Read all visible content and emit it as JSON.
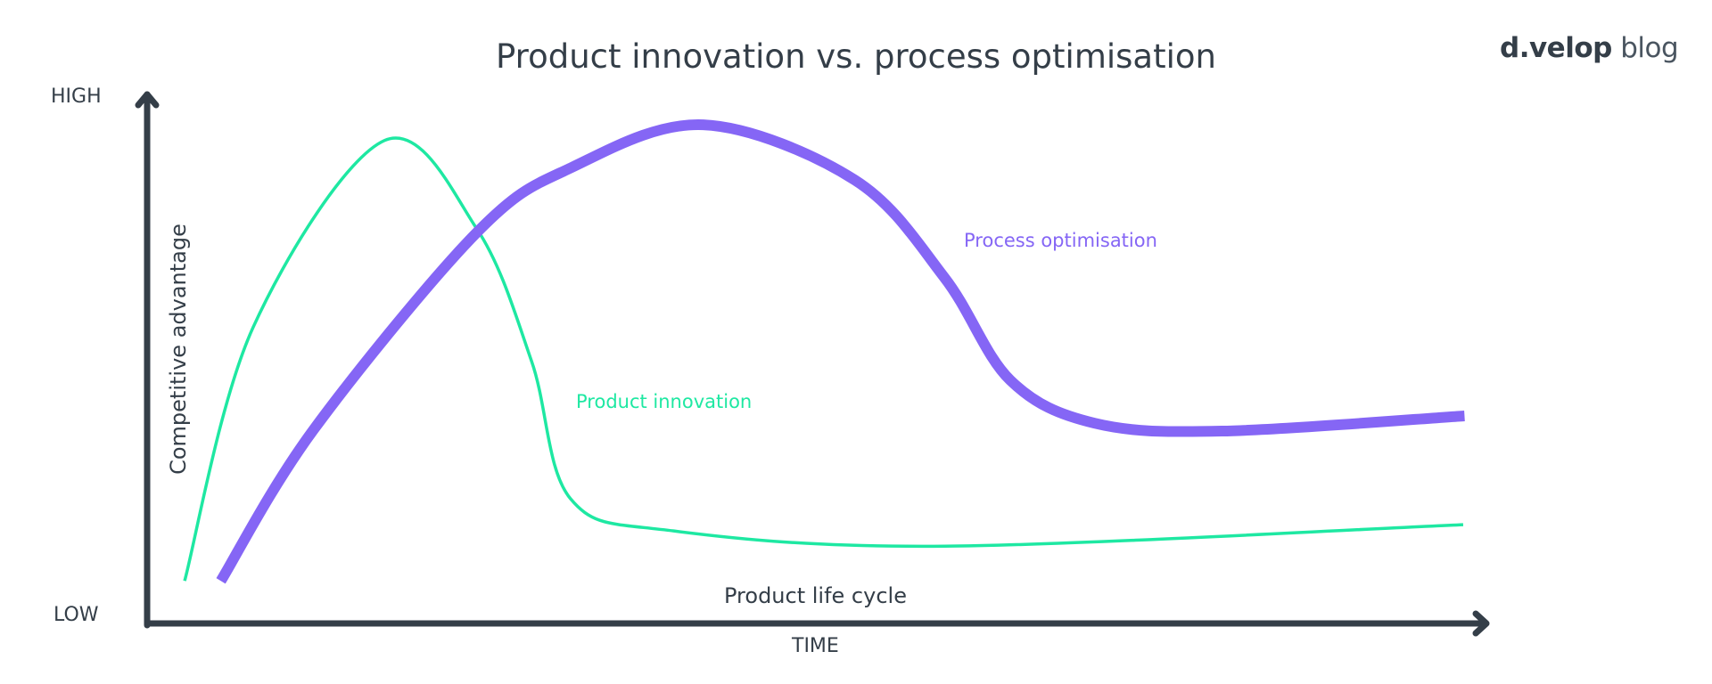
{
  "chart_data": {
    "type": "line",
    "title": "Product innovation vs. process optimisation",
    "xlabel": "Product life cycle",
    "x_axis_end_label": "TIME",
    "ylabel": "Competitive advantage",
    "y_tick_labels": {
      "low": "LOW",
      "high": "HIGH"
    },
    "xlim": [
      0,
      100
    ],
    "ylim": [
      0,
      100
    ],
    "grid": false,
    "legend": "inline labels",
    "series": [
      {
        "name": "Product innovation",
        "color": "#1ee8a2",
        "points": [
          [
            2.8,
            8.1
          ],
          [
            7.9,
            56.3
          ],
          [
            17.7,
            91.9
          ],
          [
            24.6,
            75.1
          ],
          [
            28.7,
            49.8
          ],
          [
            31.6,
            23.7
          ],
          [
            39.3,
            17.6
          ],
          [
            59.5,
            14.7
          ],
          [
            98.2,
            18.8
          ]
        ]
      },
      {
        "name": "Process optimisation",
        "color": "#8566f5",
        "points": [
          [
            5.5,
            8.1
          ],
          [
            12.4,
            36.8
          ],
          [
            24.6,
            74.4
          ],
          [
            31.7,
            86.8
          ],
          [
            41.5,
            94.9
          ],
          [
            52.8,
            84.4
          ],
          [
            59.5,
            65.8
          ],
          [
            64.4,
            46.3
          ],
          [
            70.7,
            38.1
          ],
          [
            80.2,
            36.6
          ],
          [
            98.3,
            39.5
          ]
        ]
      }
    ]
  },
  "logo": {
    "brand": "d.velop",
    "suffix": "blog"
  },
  "colors": {
    "axis": "#343e48"
  }
}
